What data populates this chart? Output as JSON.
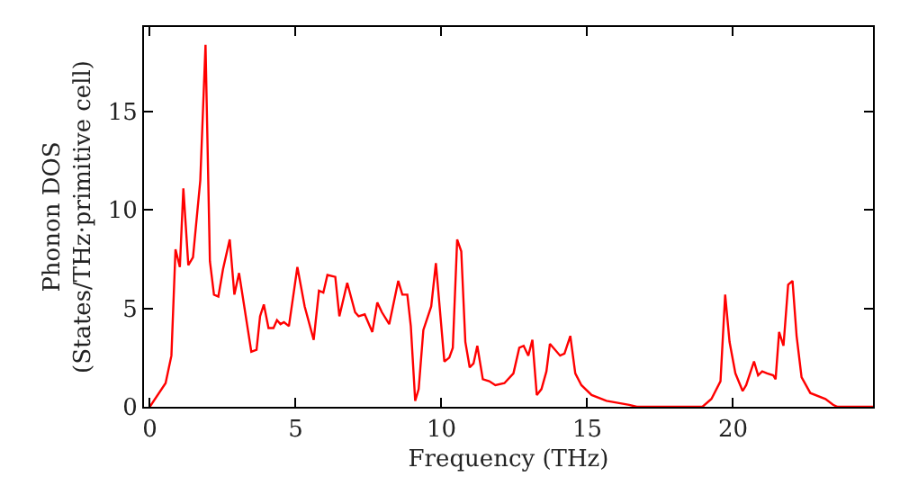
{
  "chart_data": {
    "type": "line",
    "xlabel": "Frequency (THz)",
    "ylabel": "Phonon DOS\n(States/THz·primitive cell)",
    "xlim": [
      -0.2,
      24.8
    ],
    "ylim": [
      0,
      19.3
    ],
    "xticks": [
      0,
      5,
      10,
      15,
      20
    ],
    "yticks": [
      0,
      5,
      10,
      15
    ],
    "marker": "none",
    "line_style": "solid",
    "series": [
      {
        "color": "#ff0000",
        "x": [
          0,
          0.54,
          0.74,
          0.88,
          1.03,
          1.15,
          1.32,
          1.48,
          1.73,
          1.91,
          2.06,
          2.2,
          2.35,
          2.51,
          2.74,
          2.9,
          3.06,
          3.48,
          3.66,
          3.78,
          3.91,
          4.07,
          4.24,
          4.36,
          4.48,
          4.6,
          4.77,
          5.06,
          5.31,
          5.62,
          5.8,
          5.95,
          6.09,
          6.36,
          6.5,
          6.77,
          7.04,
          7.16,
          7.37,
          7.63,
          7.8,
          7.96,
          8.21,
          8.52,
          8.66,
          8.83,
          8.95,
          9.1,
          9.22,
          9.38,
          9.65,
          9.81,
          10.1,
          10.27,
          10.39,
          10.54,
          10.68,
          10.82,
          10.97,
          11.1,
          11.23,
          11.42,
          11.64,
          11.85,
          12.16,
          12.47,
          12.67,
          12.82,
          12.98,
          13.12,
          13.27,
          13.43,
          13.6,
          13.72,
          14.07,
          14.22,
          14.42,
          14.59,
          14.8,
          15.15,
          15.66,
          16.44,
          16.7,
          18.95,
          19.26,
          19.57,
          19.73,
          19.88,
          20.08,
          20.33,
          20.45,
          20.72,
          20.86,
          21.0,
          21.17,
          21.38,
          21.46,
          21.58,
          21.73,
          21.89,
          22.04,
          22.18,
          22.35,
          22.65,
          23.17,
          23.43,
          23.58,
          24.8
        ],
        "values": [
          0,
          1.2,
          2.6,
          8.0,
          7.1,
          11.1,
          7.2,
          7.6,
          11.5,
          18.4,
          7.4,
          5.7,
          5.6,
          7.0,
          8.5,
          5.7,
          6.8,
          2.8,
          2.9,
          4.6,
          5.2,
          4.0,
          4.0,
          4.4,
          4.2,
          4.3,
          4.1,
          7.1,
          5.1,
          3.4,
          5.9,
          5.8,
          6.7,
          6.6,
          4.6,
          6.3,
          4.8,
          4.6,
          4.7,
          3.8,
          5.3,
          4.8,
          4.2,
          6.4,
          5.7,
          5.7,
          4.1,
          0.3,
          0.9,
          3.9,
          5.1,
          7.3,
          2.3,
          2.5,
          3.0,
          8.5,
          7.9,
          3.3,
          2.0,
          2.2,
          3.1,
          1.4,
          1.3,
          1.1,
          1.2,
          1.7,
          3.0,
          3.1,
          2.6,
          3.4,
          0.6,
          0.9,
          1.8,
          3.2,
          2.6,
          2.7,
          3.6,
          1.7,
          1.1,
          0.6,
          0.3,
          0.1,
          0,
          0,
          0.4,
          1.3,
          5.7,
          3.3,
          1.7,
          0.8,
          1.1,
          2.3,
          1.6,
          1.8,
          1.7,
          1.6,
          1.4,
          3.8,
          3.1,
          6.2,
          6.4,
          3.6,
          1.5,
          0.7,
          0.4,
          0.1,
          0,
          0
        ]
      }
    ]
  }
}
